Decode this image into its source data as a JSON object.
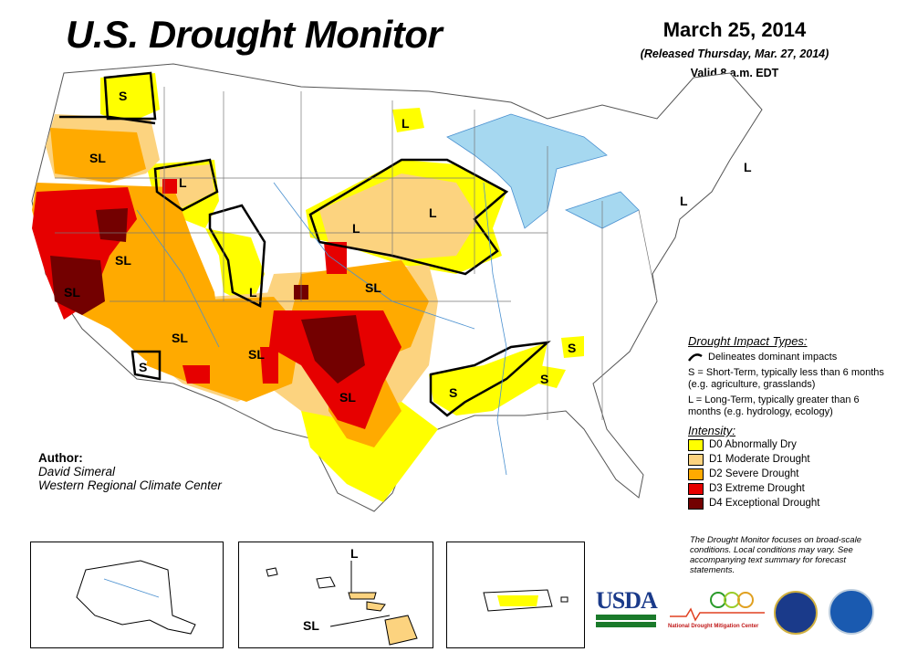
{
  "header": {
    "title": "U.S. Drought Monitor",
    "date": "March 25, 2014",
    "released": "(Released Thursday, Mar. 27, 2014)",
    "valid": "Valid 8 a.m. EDT"
  },
  "author": {
    "heading": "Author:",
    "name": "David Simeral",
    "org": "Western Regional Climate Center"
  },
  "legend": {
    "impact_heading": "Drought Impact Types:",
    "delineates": "Delineates dominant impacts",
    "short_term": "S = Short-Term, typically less than 6 months (e.g. agriculture, grasslands)",
    "long_term": "L = Long-Term, typically greater than 6 months (e.g. hydrology, ecology)",
    "intensity_heading": "Intensity:",
    "intensity": [
      {
        "label": "D0 Abnormally Dry",
        "color": "#ffff00"
      },
      {
        "label": "D1 Moderate Drought",
        "color": "#fcd37f"
      },
      {
        "label": "D2 Severe Drought",
        "color": "#ffaa00"
      },
      {
        "label": "D3 Extreme Drought",
        "color": "#e60000"
      },
      {
        "label": "D4 Exceptional Drought",
        "color": "#730000"
      }
    ]
  },
  "note": "The Drought Monitor focuses on broad-scale conditions. Local conditions may vary. See accompanying text summary for forecast statements.",
  "map_labels": {
    "s1": "S",
    "sl1": "SL",
    "l1": "L",
    "sl2": "SL",
    "sl3": "SL",
    "sl4": "SL",
    "s2": "S",
    "l2": "L",
    "l3": "L",
    "sl5": "SL",
    "sl6": "SL",
    "sl7": "SL",
    "l4": "L",
    "l5": "L",
    "l6": "L",
    "s3": "S",
    "s4": "S",
    "s5": "S",
    "l7": "L",
    "hi_l": "L",
    "hi_sl": "SL"
  },
  "logos": {
    "usda": "USDA",
    "ndmc": "National Drought Mitigation Center"
  },
  "colors": {
    "water": "#a6d8f0",
    "d0": "#ffff00",
    "d1": "#fcd37f",
    "d2": "#ffaa00",
    "d3": "#e60000",
    "d4": "#730000"
  }
}
